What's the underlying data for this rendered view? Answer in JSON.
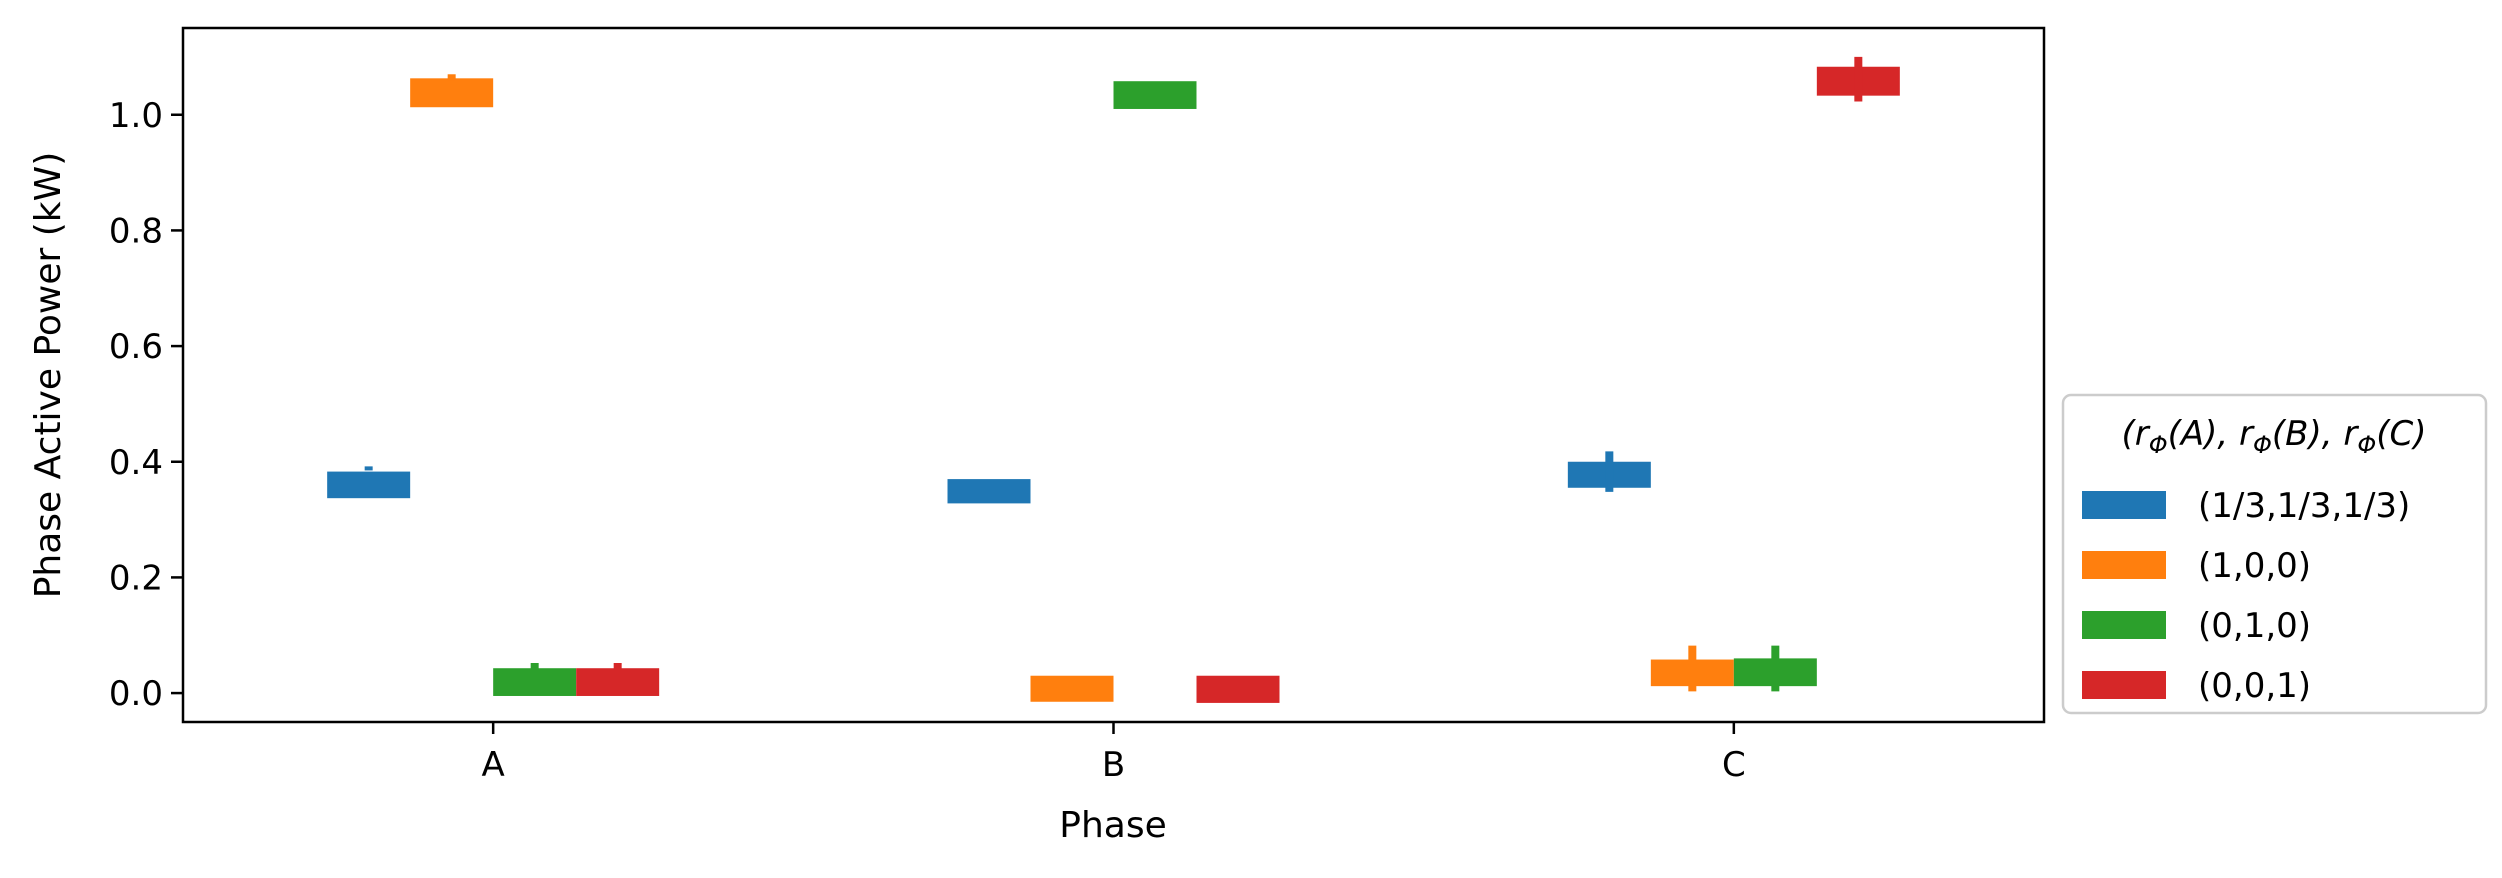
{
  "chart_data": {
    "type": "bar",
    "categories": [
      "A",
      "B",
      "C"
    ],
    "xlabel": "Phase",
    "ylabel": "Phase Active Power (kW)",
    "ylim": [
      -0.05,
      1.15
    ],
    "yticks": [
      0.0,
      0.2,
      0.4,
      0.6,
      0.8,
      1.0
    ],
    "ytick_labels": [
      "0.0",
      "0.2",
      "0.4",
      "0.6",
      "0.8",
      "1.0"
    ],
    "grid": false,
    "legend": {
      "title": "(rΦ(A), rΦ(B), rΦ(C)",
      "placement": "outside-right-bottom"
    },
    "series": [
      {
        "name": "(1/3,1/3,1/3)",
        "color": "#1f77b4",
        "low": [
          0.337,
          0.328,
          0.355
        ],
        "high": [
          0.383,
          0.37,
          0.4
        ],
        "err": [
          [
            0.385,
            0.392
          ],
          null,
          [
            0.348,
            0.418
          ]
        ]
      },
      {
        "name": "(1,0,0)",
        "color": "#ff7f0e",
        "low": [
          1.013,
          -0.015,
          0.012
        ],
        "high": [
          1.063,
          0.03,
          0.058
        ],
        "err": [
          [
            1.06,
            1.07
          ],
          null,
          [
            0.003,
            0.082
          ]
        ]
      },
      {
        "name": "(0,1,0)",
        "color": "#2ca02c",
        "low": [
          -0.005,
          1.01,
          0.012
        ],
        "high": [
          0.043,
          1.058,
          0.06
        ],
        "err": [
          [
            0.04,
            0.052
          ],
          null,
          [
            0.003,
            0.082
          ]
        ]
      },
      {
        "name": "(0,0,1)",
        "color": "#d62728",
        "low": [
          -0.005,
          -0.017,
          1.033
        ],
        "high": [
          0.043,
          0.03,
          1.083
        ],
        "err": [
          [
            0.04,
            0.052
          ],
          null,
          [
            1.023,
            1.1
          ]
        ]
      }
    ]
  }
}
